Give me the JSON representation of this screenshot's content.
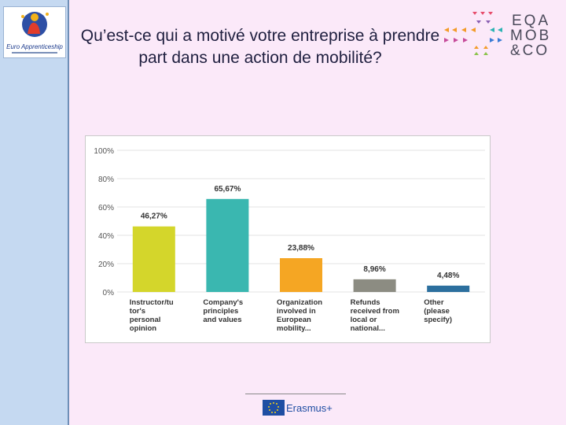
{
  "slide": {
    "title": "Qu’est-ce qui a motivé votre entreprise à prendre part dans une action de mobilité?",
    "logo_left_text": "Euro Apprenticeship",
    "logo_right_lines": [
      "EQA",
      "MOB",
      "&CO"
    ],
    "footer_text": "Erasmus+"
  },
  "colors": {
    "background": "#fbe9f9",
    "sidebar": "#c5d9f1",
    "grid": "#e3e3e3",
    "bar_colors": [
      "#d4d62b",
      "#3ab7b0",
      "#f5a623",
      "#8c8c82",
      "#2c6f9e"
    ]
  },
  "chart_data": {
    "type": "bar",
    "categories": [
      "Instructor/tutor's personal opinion",
      "Company's principles and values",
      "Organization involved in European mobility...",
      "Refunds received from local or national...",
      "Other (please specify)"
    ],
    "category_lines": [
      [
        "Instructor/tu",
        "tor's",
        "personal",
        "opinion"
      ],
      [
        "Company's",
        "principles",
        "and values"
      ],
      [
        "Organization",
        "involved in",
        "European",
        "mobility..."
      ],
      [
        "Refunds",
        "received from",
        "local or",
        "national..."
      ],
      [
        "Other",
        "(please",
        "specify)"
      ]
    ],
    "values": [
      46.27,
      65.67,
      23.88,
      8.96,
      4.48
    ],
    "labels": [
      "46,27%",
      "65,67%",
      "23,88%",
      "8,96%",
      "4,48%"
    ],
    "yticks": [
      "0%",
      "20%",
      "40%",
      "60%",
      "80%",
      "100%"
    ],
    "ylim": [
      0,
      100
    ],
    "title": "",
    "xlabel": "",
    "ylabel": ""
  }
}
